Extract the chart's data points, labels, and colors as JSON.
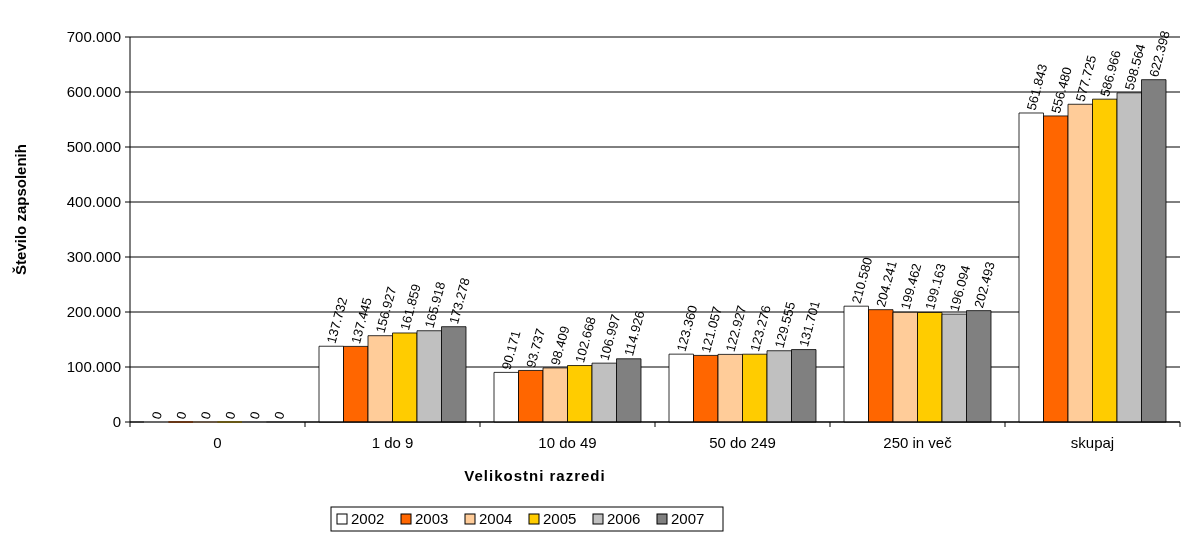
{
  "chart_data": {
    "type": "bar",
    "xlabel": "Velikostni razredi",
    "ylabel": "Število zapsolenih",
    "categories": [
      "0",
      "1 do 9",
      "10 do 49",
      "50 do 249",
      "250 in več",
      "skupaj"
    ],
    "series": [
      {
        "name": "2002",
        "color": "#ffffff",
        "values": [
          0,
          137732,
          90171,
          123360,
          210580,
          561843
        ],
        "value_labels": [
          "0",
          "137.732",
          "90.171",
          "123.360",
          "210.580",
          "561.843"
        ]
      },
      {
        "name": "2003",
        "color": "#ff6600",
        "values": [
          0,
          137445,
          93737,
          121057,
          204241,
          556480
        ],
        "value_labels": [
          "0",
          "137.445",
          "93.737",
          "121.057",
          "204.241",
          "556.480"
        ]
      },
      {
        "name": "2004",
        "color": "#ffcc99",
        "values": [
          0,
          156927,
          98409,
          122927,
          199462,
          577725
        ],
        "value_labels": [
          "0",
          "156.927",
          "98.409",
          "122.927",
          "199.462",
          "577.725"
        ]
      },
      {
        "name": "2005",
        "color": "#ffcc00",
        "values": [
          0,
          161859,
          102668,
          123276,
          199163,
          586966
        ],
        "value_labels": [
          "0",
          "161.859",
          "102.668",
          "123.276",
          "199.163",
          "586.966"
        ]
      },
      {
        "name": "2006",
        "color": "#c0c0c0",
        "values": [
          0,
          165918,
          106997,
          129555,
          196094,
          598564
        ],
        "value_labels": [
          "0",
          "165.918",
          "106.997",
          "129.555",
          "196.094",
          "598.564"
        ]
      },
      {
        "name": "2007",
        "color": "#808080",
        "values": [
          0,
          173278,
          114926,
          131701,
          202493,
          622398
        ],
        "value_labels": [
          "0",
          "173.278",
          "114.926",
          "131.701",
          "202.493",
          "622.398"
        ]
      }
    ],
    "ylim": [
      0,
      700000
    ],
    "yticks": [
      0,
      {
        "value": 100000,
        "label": "100.000"
      },
      {
        "value": 200000,
        "label": "200.000"
      },
      {
        "value": 300000,
        "label": "300.000"
      },
      {
        "value": 400000,
        "label": "400.000"
      },
      {
        "value": 500000,
        "label": "500.000"
      },
      {
        "value": 600000,
        "label": "600.000"
      },
      {
        "value": 700000,
        "label": "700.000"
      }
    ],
    "grid": "y",
    "legend": "bottom"
  }
}
